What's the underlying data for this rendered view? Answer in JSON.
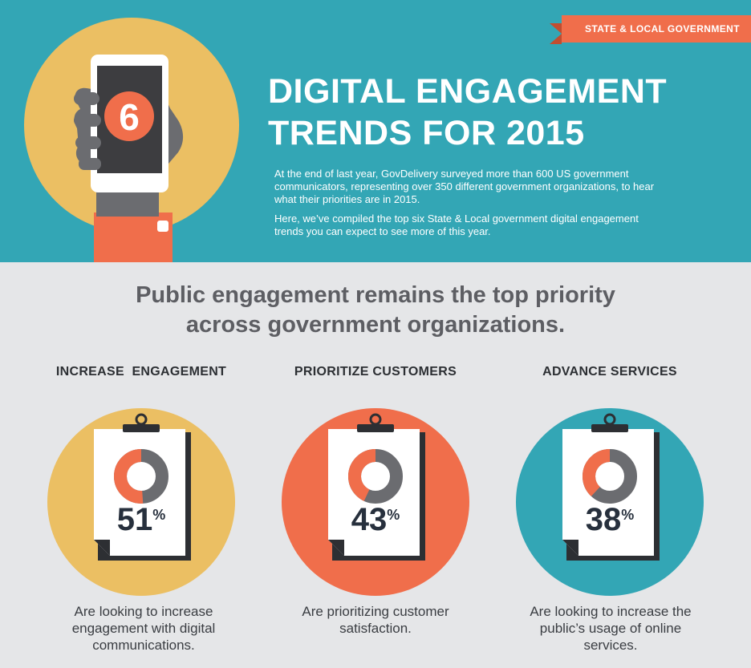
{
  "ribbon": "STATE & LOCAL GOVERNMENT",
  "phone_number": "6",
  "title_line1": "DIGITAL ENGAGEMENT",
  "title_line2": "TRENDS FOR 2015",
  "intro_p1": "At the end of last year, GovDelivery surveyed more than 600 US government communicators, representing over 350 different government organizations, to hear what their priorities are in 2015.",
  "intro_p2": "Here, we’ve compiled the top six State & Local government digital engagement trends you can expect to see more of this year.",
  "headline_line1": "Public engagement remains the top priority",
  "headline_line2": "across government organizations.",
  "colors": {
    "teal": "#33a6b5",
    "gold": "#ebbf63",
    "orange": "#f06e4b",
    "gray": "#6b6c70"
  },
  "stats": [
    {
      "title": "INCREASE  ENGAGEMENT",
      "value": "51",
      "unit": "%",
      "fraction": 0.51,
      "color": "#ebbf63",
      "description": "Are looking to increase engagement with digital communications."
    },
    {
      "title": "PRIORITIZE CUSTOMERS",
      "value": "43",
      "unit": "%",
      "fraction": 0.43,
      "color": "#f06e4b",
      "description": "Are prioritizing customer satisfaction."
    },
    {
      "title": "ADVANCE SERVICES",
      "value": "38",
      "unit": "%",
      "fraction": 0.38,
      "color": "#33a6b5",
      "description": "Are looking to increase the public’s usage of online services."
    }
  ]
}
